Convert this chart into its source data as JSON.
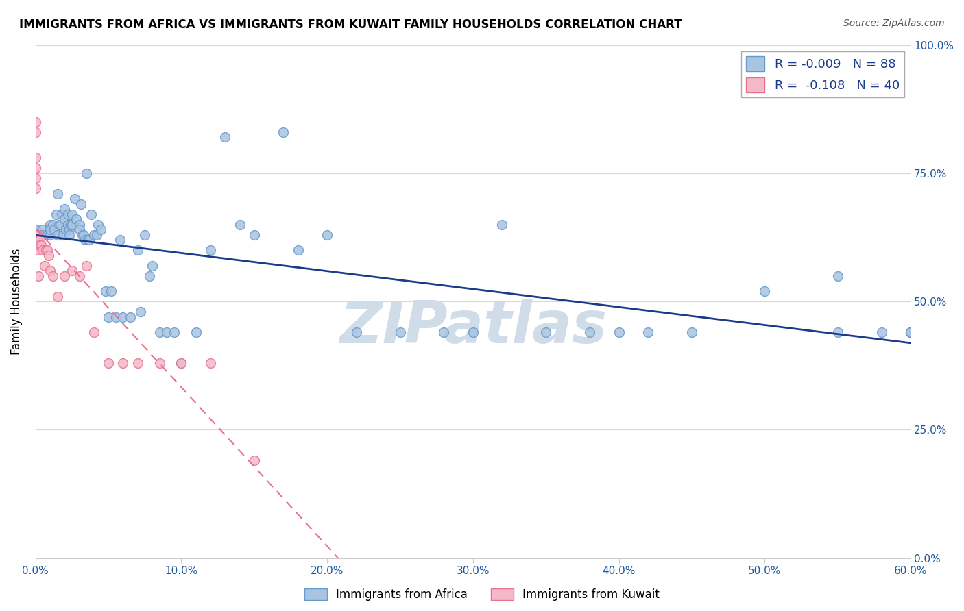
{
  "title": "IMMIGRANTS FROM AFRICA VS IMMIGRANTS FROM KUWAIT FAMILY HOUSEHOLDS CORRELATION CHART",
  "source": "Source: ZipAtlas.com",
  "xlabel_ticks": [
    "0.0%",
    "10.0%",
    "20.0%",
    "30.0%",
    "40.0%",
    "50.0%",
    "60.0%"
  ],
  "ylabel_ticks": [
    "0.0%",
    "25.0%",
    "50.0%",
    "75.0%",
    "100.0%"
  ],
  "ylabel_label": "Family Households",
  "legend_africa": "Immigrants from Africa",
  "legend_kuwait": "Immigrants from Kuwait",
  "R_africa": "-0.009",
  "N_africa": "88",
  "R_kuwait": "-0.108",
  "N_kuwait": "40",
  "africa_color": "#a8c4e0",
  "africa_edge": "#6699cc",
  "kuwait_color": "#f4b8c8",
  "kuwait_edge": "#e87090",
  "trendline_africa_color": "#1a3a8c",
  "trendline_kuwait_color": "#e87090",
  "watermark_color": "#d0dde8",
  "africa_scatter": {
    "x": [
      0.0,
      0.0,
      0.0,
      0.0,
      0.0,
      0.005,
      0.005,
      0.008,
      0.01,
      0.01,
      0.01,
      0.01,
      0.012,
      0.013,
      0.014,
      0.015,
      0.015,
      0.016,
      0.017,
      0.018,
      0.019,
      0.02,
      0.02,
      0.021,
      0.022,
      0.022,
      0.023,
      0.023,
      0.024,
      0.025,
      0.025,
      0.027,
      0.028,
      0.03,
      0.03,
      0.031,
      0.032,
      0.033,
      0.034,
      0.035,
      0.036,
      0.037,
      0.038,
      0.04,
      0.042,
      0.043,
      0.045,
      0.048,
      0.05,
      0.052,
      0.055,
      0.058,
      0.06,
      0.065,
      0.07,
      0.072,
      0.075,
      0.078,
      0.08,
      0.085,
      0.09,
      0.095,
      0.1,
      0.11,
      0.12,
      0.13,
      0.14,
      0.15,
      0.17,
      0.18,
      0.2,
      0.22,
      0.25,
      0.28,
      0.3,
      0.32,
      0.35,
      0.38,
      0.4,
      0.42,
      0.45,
      0.5,
      0.55,
      0.58,
      0.55,
      0.6,
      0.6,
      0.6
    ],
    "y": [
      0.63,
      0.64,
      0.63,
      0.62,
      0.64,
      0.64,
      0.63,
      0.63,
      0.65,
      0.64,
      0.63,
      0.64,
      0.65,
      0.64,
      0.67,
      0.71,
      0.63,
      0.65,
      0.65,
      0.67,
      0.63,
      0.66,
      0.68,
      0.64,
      0.67,
      0.65,
      0.64,
      0.63,
      0.65,
      0.67,
      0.65,
      0.7,
      0.66,
      0.65,
      0.64,
      0.69,
      0.63,
      0.63,
      0.62,
      0.75,
      0.62,
      0.62,
      0.67,
      0.63,
      0.63,
      0.65,
      0.64,
      0.52,
      0.47,
      0.52,
      0.47,
      0.62,
      0.47,
      0.47,
      0.6,
      0.48,
      0.63,
      0.55,
      0.57,
      0.44,
      0.44,
      0.44,
      0.38,
      0.44,
      0.6,
      0.82,
      0.65,
      0.63,
      0.83,
      0.6,
      0.63,
      0.44,
      0.44,
      0.44,
      0.44,
      0.65,
      0.44,
      0.44,
      0.44,
      0.44,
      0.44,
      0.52,
      0.44,
      0.44,
      0.55,
      0.44,
      0.44,
      0.44
    ]
  },
  "kuwait_scatter": {
    "x": [
      0.0,
      0.0,
      0.0,
      0.0,
      0.0,
      0.0,
      0.0,
      0.0,
      0.0,
      0.0,
      0.0,
      0.001,
      0.001,
      0.001,
      0.001,
      0.002,
      0.002,
      0.003,
      0.003,
      0.004,
      0.005,
      0.006,
      0.007,
      0.008,
      0.009,
      0.01,
      0.012,
      0.015,
      0.02,
      0.025,
      0.03,
      0.035,
      0.04,
      0.05,
      0.06,
      0.07,
      0.085,
      0.1,
      0.12,
      0.15
    ],
    "y": [
      0.85,
      0.83,
      0.78,
      0.76,
      0.74,
      0.72,
      0.63,
      0.63,
      0.62,
      0.62,
      0.62,
      0.63,
      0.62,
      0.62,
      0.61,
      0.6,
      0.55,
      0.62,
      0.61,
      0.61,
      0.6,
      0.57,
      0.6,
      0.6,
      0.59,
      0.56,
      0.55,
      0.51,
      0.55,
      0.56,
      0.55,
      0.57,
      0.44,
      0.38,
      0.38,
      0.38,
      0.38,
      0.38,
      0.38,
      0.19
    ]
  },
  "xlim": [
    0.0,
    0.6
  ],
  "ylim": [
    0.0,
    1.0
  ],
  "figsize": [
    14.06,
    8.92
  ],
  "dpi": 100
}
